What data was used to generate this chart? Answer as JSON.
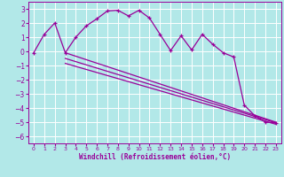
{
  "xlabel": "Windchill (Refroidissement éolien,°C)",
  "xlim": [
    -0.5,
    23.5
  ],
  "ylim": [
    -6.5,
    3.5
  ],
  "yticks": [
    3,
    2,
    1,
    0,
    -1,
    -2,
    -3,
    -4,
    -5,
    -6
  ],
  "xticks": [
    0,
    1,
    2,
    3,
    4,
    5,
    6,
    7,
    8,
    9,
    10,
    11,
    12,
    13,
    14,
    15,
    16,
    17,
    18,
    19,
    20,
    21,
    22,
    23
  ],
  "line_color": "#990099",
  "bg_color": "#b2e8e8",
  "grid_color": "#ffffff",
  "line1_x": [
    0,
    1,
    2,
    3,
    4,
    5,
    6,
    7,
    8,
    9,
    10,
    11,
    12,
    13,
    14,
    15,
    16,
    17,
    18,
    19,
    20,
    21,
    22,
    23
  ],
  "line1_y": [
    -0.1,
    1.2,
    2.0,
    -0.1,
    1.0,
    1.8,
    2.3,
    2.85,
    2.9,
    2.5,
    2.9,
    2.35,
    1.2,
    0.05,
    1.1,
    0.1,
    1.2,
    0.5,
    -0.1,
    -0.4,
    -3.8,
    -4.55,
    -5.0,
    -5.05
  ],
  "line2_x": [
    3,
    23
  ],
  "line2_y": [
    -0.1,
    -5.0
  ],
  "line3_x": [
    3,
    23
  ],
  "line3_y": [
    -0.5,
    -5.05
  ],
  "line4_x": [
    3,
    23
  ],
  "line4_y": [
    -0.85,
    -5.15
  ]
}
